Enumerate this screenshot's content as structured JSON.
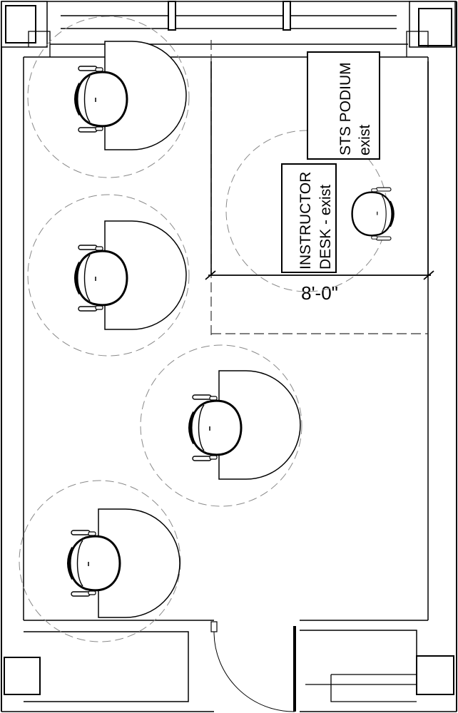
{
  "labels": {
    "podium": {
      "line1": "STS PODIUM",
      "line2": "exist"
    },
    "desk": {
      "line1": "INSTRUCTOR",
      "line2": "DESK - exist"
    },
    "dimension": "8'-0\""
  },
  "colors": {
    "ink": "#000000",
    "clearance": "#8a8a8a"
  },
  "icons": [
    "office-chair-icon",
    "door-swing-icon",
    "dimension-tick-icon"
  ]
}
